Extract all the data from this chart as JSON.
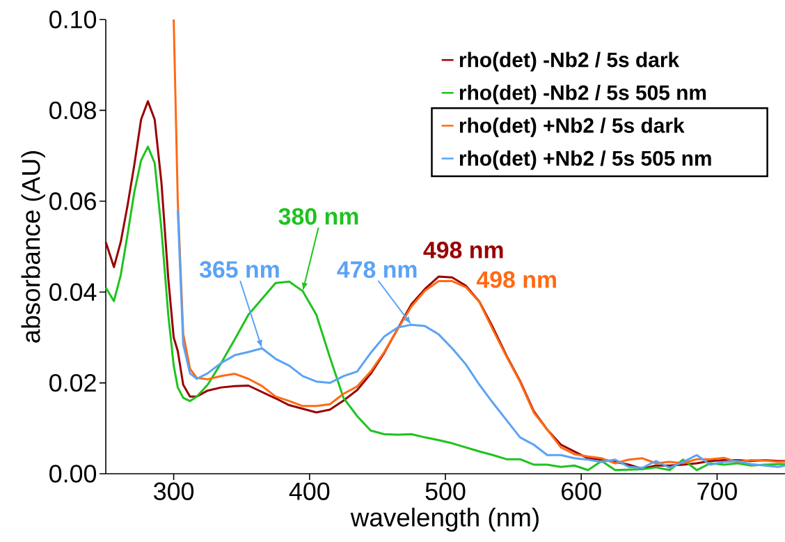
{
  "chart_data": {
    "type": "line",
    "xlabel": "wavelength (nm)",
    "ylabel": "absorbance (AU)",
    "xlim": [
      250,
      750
    ],
    "xticks": [
      300,
      400,
      500,
      600,
      700
    ],
    "ylim": [
      0,
      0.1
    ],
    "yticks": [
      {
        "value": 0,
        "label": "0.00"
      },
      0.02,
      0.04,
      0.06,
      0.08,
      {
        "value": 0.1,
        "label": "0.10"
      }
    ],
    "grid": false,
    "legend": "top right",
    "marker": "none",
    "line_style": "solid",
    "x": [
      250,
      256,
      261,
      266,
      271,
      276,
      281,
      286,
      291,
      296,
      300,
      303,
      307,
      312,
      317,
      325,
      335,
      345,
      355,
      365,
      375,
      385,
      395,
      405,
      415,
      425,
      435,
      445,
      455,
      465,
      475,
      485,
      495,
      505,
      515,
      525,
      535,
      545,
      555,
      565,
      575,
      585,
      595,
      605,
      615,
      625,
      635,
      645,
      655,
      665,
      675,
      685,
      695,
      705,
      715,
      725,
      735,
      745,
      750
    ],
    "series": [
      {
        "name": "rho(det) -Nb2 / 5s dark",
        "color": "#990000",
        "values": [
          0.051,
          0.0455,
          0.051,
          0.059,
          0.068,
          0.078,
          0.082,
          0.078,
          0.064,
          0.043,
          0.03,
          0.027,
          0.0196,
          0.017,
          0.017,
          0.0183,
          0.019,
          0.0193,
          0.0194,
          0.018,
          0.0166,
          0.0151,
          0.0143,
          0.0135,
          0.0141,
          0.0161,
          0.0184,
          0.022,
          0.0266,
          0.032,
          0.0373,
          0.0407,
          0.0434,
          0.0432,
          0.0414,
          0.0379,
          0.0322,
          0.026,
          0.0204,
          0.0138,
          0.0097,
          0.0064,
          0.0049,
          0.0034,
          0.0031,
          0.0026,
          0.002,
          0.0011,
          0.0018,
          0.0018,
          0.002,
          0.0023,
          0.0028,
          0.003,
          0.003,
          0.0028,
          0.003,
          0.0028,
          0.0028
        ]
      },
      {
        "name": "rho(det) -Nb2 / 5s 505 nm",
        "color": "#1ec31e",
        "values": [
          0.041,
          0.038,
          0.0437,
          0.0526,
          0.062,
          0.069,
          0.072,
          0.0684,
          0.0537,
          0.035,
          0.0238,
          0.019,
          0.0167,
          0.016,
          0.017,
          0.0196,
          0.0244,
          0.0296,
          0.035,
          0.0385,
          0.042,
          0.0423,
          0.0402,
          0.035,
          0.0256,
          0.0167,
          0.0127,
          0.0095,
          0.0087,
          0.0086,
          0.0087,
          0.008,
          0.0074,
          0.0067,
          0.0058,
          0.0049,
          0.0041,
          0.0032,
          0.0032,
          0.002,
          0.002,
          0.0015,
          0.0018,
          0.0008,
          0.0028,
          0.0008,
          0.0009,
          0.001,
          0.0014,
          0.0008,
          0.0031,
          0.0008,
          0.0023,
          0.002,
          0.0023,
          0.0018,
          0.002,
          0.0021,
          0.0021
        ]
      },
      {
        "name": "rho(det) +Nb2 / 5s dark",
        "color": "#ff6a13",
        "values": [
          null,
          null,
          null,
          null,
          null,
          null,
          null,
          null,
          null,
          null,
          0.1,
          0.06,
          0.0308,
          0.0231,
          0.0211,
          0.0208,
          0.0215,
          0.022,
          0.0209,
          0.0193,
          0.017,
          0.016,
          0.0149,
          0.0149,
          0.0153,
          0.0176,
          0.0192,
          0.0225,
          0.0268,
          0.0319,
          0.0368,
          0.0403,
          0.0424,
          0.0424,
          0.0411,
          0.0378,
          0.0317,
          0.0258,
          0.0202,
          0.0135,
          0.0097,
          0.0058,
          0.0043,
          0.0038,
          0.0034,
          0.0023,
          0.0031,
          0.0034,
          0.0023,
          0.0026,
          0.0023,
          0.0032,
          0.0032,
          0.0035,
          0.0026,
          0.003,
          0.0029,
          0.0026,
          0.0027
        ]
      },
      {
        "name": "rho(det) +Nb2 / 5s 505 nm",
        "color": "#5aa3f5",
        "values": [
          null,
          null,
          null,
          null,
          null,
          null,
          null,
          null,
          null,
          null,
          null,
          0.058,
          0.0285,
          0.0221,
          0.0209,
          0.0221,
          0.0244,
          0.0261,
          0.0268,
          0.0276,
          0.0253,
          0.0238,
          0.0215,
          0.0203,
          0.02,
          0.0215,
          0.0225,
          0.0266,
          0.0302,
          0.0322,
          0.0328,
          0.0325,
          0.0307,
          0.0276,
          0.0241,
          0.0196,
          0.0156,
          0.0118,
          0.008,
          0.0064,
          0.0041,
          0.0041,
          0.0034,
          0.0031,
          0.0026,
          0.0031,
          0.0015,
          0.0013,
          0.0028,
          0.0013,
          0.0026,
          0.0041,
          0.002,
          0.0026,
          0.0028,
          0.0021,
          0.0018,
          0.0015,
          0.0018
        ]
      }
    ],
    "annotations": [
      {
        "text": "380 nm",
        "x": 395,
        "y": 0.0402
      },
      {
        "text": "365 nm",
        "x": 365,
        "y": 0.0276
      },
      {
        "text": "478 nm",
        "x": 475,
        "y": 0.0328
      },
      {
        "text": "498 nm",
        "x": 495,
        "y": 0.0434
      },
      {
        "text": "498 nm",
        "x": 505,
        "y": 0.0424
      }
    ]
  }
}
